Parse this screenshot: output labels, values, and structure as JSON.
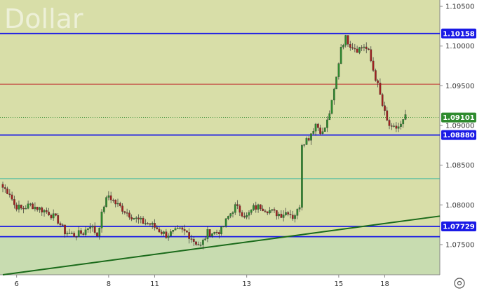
{
  "watermark": "Dollar",
  "colors": {
    "plot_bg": "#d8dea8",
    "plot_bg_lower": "#c8dcb0",
    "axis_bg": "#ffffff",
    "bull": "#2e8b2e",
    "bear": "#a02020",
    "blue_level": "#1a1ae6",
    "red_level": "#c03030",
    "teal_level": "#40b8a0",
    "trend": "#1a6a1a",
    "price_tag": "#2e8b2e"
  },
  "settings_icon": "gear-icon",
  "chart_data": {
    "type": "candlestick",
    "title": "Dollar",
    "ylim": [
      1.0712,
      1.1058
    ],
    "yticks": [
      "1.10500",
      "1.10000",
      "1.09500",
      "1.09000",
      "1.08500",
      "1.08000",
      "1.07500"
    ],
    "xtick_labels": [
      "6",
      "8",
      "11",
      "13",
      "15",
      "18"
    ],
    "xtick_index": [
      6,
      46,
      66,
      106,
      146,
      166
    ],
    "levels": [
      {
        "name": "level-1.10158",
        "value": 1.10158,
        "color": "blue",
        "label": "1.10158"
      },
      {
        "name": "level-1.09520",
        "value": 1.0952,
        "color": "red",
        "label": ""
      },
      {
        "name": "level-1.08880",
        "value": 1.0888,
        "color": "blue",
        "label": "1.08880"
      },
      {
        "name": "level-1.08330",
        "value": 1.0833,
        "color": "teal",
        "label": ""
      },
      {
        "name": "level-1.07729",
        "value": 1.07729,
        "color": "blue",
        "label": "1.07729"
      },
      {
        "name": "level-1.07600",
        "value": 1.076,
        "color": "blue",
        "label": ""
      }
    ],
    "trendline": {
      "from": [
        0,
        1.0712
      ],
      "to": [
        180,
        1.0782
      ]
    },
    "last_price": {
      "value": 1.09101,
      "label": "1.09101"
    },
    "anchors": [
      [
        0,
        1.0822
      ],
      [
        3,
        1.0815
      ],
      [
        5,
        1.08
      ],
      [
        8,
        1.0795
      ],
      [
        12,
        1.08
      ],
      [
        16,
        1.0795
      ],
      [
        20,
        1.079
      ],
      [
        24,
        1.078
      ],
      [
        27,
        1.0766
      ],
      [
        31,
        1.0762
      ],
      [
        35,
        1.0765
      ],
      [
        38,
        1.0775
      ],
      [
        41,
        1.0762
      ],
      [
        44,
        1.08
      ],
      [
        46,
        1.0812
      ],
      [
        49,
        1.0802
      ],
      [
        52,
        1.0795
      ],
      [
        55,
        1.0788
      ],
      [
        58,
        1.0782
      ],
      [
        61,
        1.0778
      ],
      [
        64,
        1.0776
      ],
      [
        66,
        1.0772
      ],
      [
        68,
        1.0768
      ],
      [
        71,
        1.0762
      ],
      [
        74,
        1.0765
      ],
      [
        77,
        1.0768
      ],
      [
        80,
        1.0765
      ],
      [
        83,
        1.0755
      ],
      [
        86,
        1.0748
      ],
      [
        89,
        1.0765
      ],
      [
        92,
        1.0765
      ],
      [
        95,
        1.0768
      ],
      [
        98,
        1.0785
      ],
      [
        101,
        1.0798
      ],
      [
        104,
        1.079
      ],
      [
        106,
        1.0785
      ],
      [
        109,
        1.0796
      ],
      [
        112,
        1.0798
      ],
      [
        115,
        1.0794
      ],
      [
        118,
        1.079
      ],
      [
        121,
        1.0788
      ],
      [
        124,
        1.0792
      ],
      [
        126,
        1.0785
      ],
      [
        128,
        1.0792
      ],
      [
        129,
        1.08
      ],
      [
        130,
        1.0878
      ],
      [
        133,
        1.0885
      ],
      [
        136,
        1.0902
      ],
      [
        139,
        1.089
      ],
      [
        141,
        1.0905
      ],
      [
        143,
        1.0928
      ],
      [
        145,
        1.096
      ],
      [
        147,
        1.1
      ],
      [
        149,
        1.101
      ],
      [
        151,
        1.1002
      ],
      [
        154,
        1.0996
      ],
      [
        157,
        1.1
      ],
      [
        159,
        1.0992
      ],
      [
        161,
        1.097
      ],
      [
        163,
        1.095
      ],
      [
        165,
        1.0925
      ],
      [
        167,
        1.0905
      ],
      [
        169,
        1.0895
      ],
      [
        171,
        1.0897
      ],
      [
        173,
        1.09
      ],
      [
        175,
        1.091
      ]
    ]
  }
}
